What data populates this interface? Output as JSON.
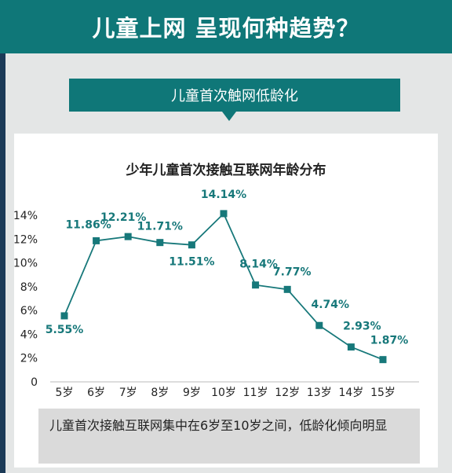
{
  "header": {
    "title": "儿童上网 呈现何种趋势？"
  },
  "subtitle": {
    "text": "儿童首次触网低龄化"
  },
  "chart_data": {
    "type": "line",
    "title": "少年儿童首次接触互联网年龄分布",
    "xlabel": "",
    "ylabel": "",
    "categories": [
      "5岁",
      "6岁",
      "7岁",
      "8岁",
      "9岁",
      "10岁",
      "11岁",
      "12岁",
      "13岁",
      "14岁",
      "15岁"
    ],
    "values": [
      5.55,
      11.86,
      12.21,
      11.71,
      11.51,
      14.14,
      8.14,
      7.77,
      4.74,
      2.93,
      1.87
    ],
    "data_labels": [
      "5.55%",
      "11.86%",
      "12.21%",
      "11.71%",
      "11.51%",
      "14.14%",
      "8.14%",
      "7.77%",
      "4.74%",
      "2.93%",
      "1.87%"
    ],
    "yticks": [
      "0",
      "2%",
      "4%",
      "6%",
      "8%",
      "10%",
      "12%",
      "14%"
    ],
    "ylim": [
      0,
      14
    ],
    "grid": false,
    "color": "#17787a"
  },
  "note": {
    "text": "儿童首次接触互联网集中在6岁至10岁之间，低龄化倾向明显"
  }
}
